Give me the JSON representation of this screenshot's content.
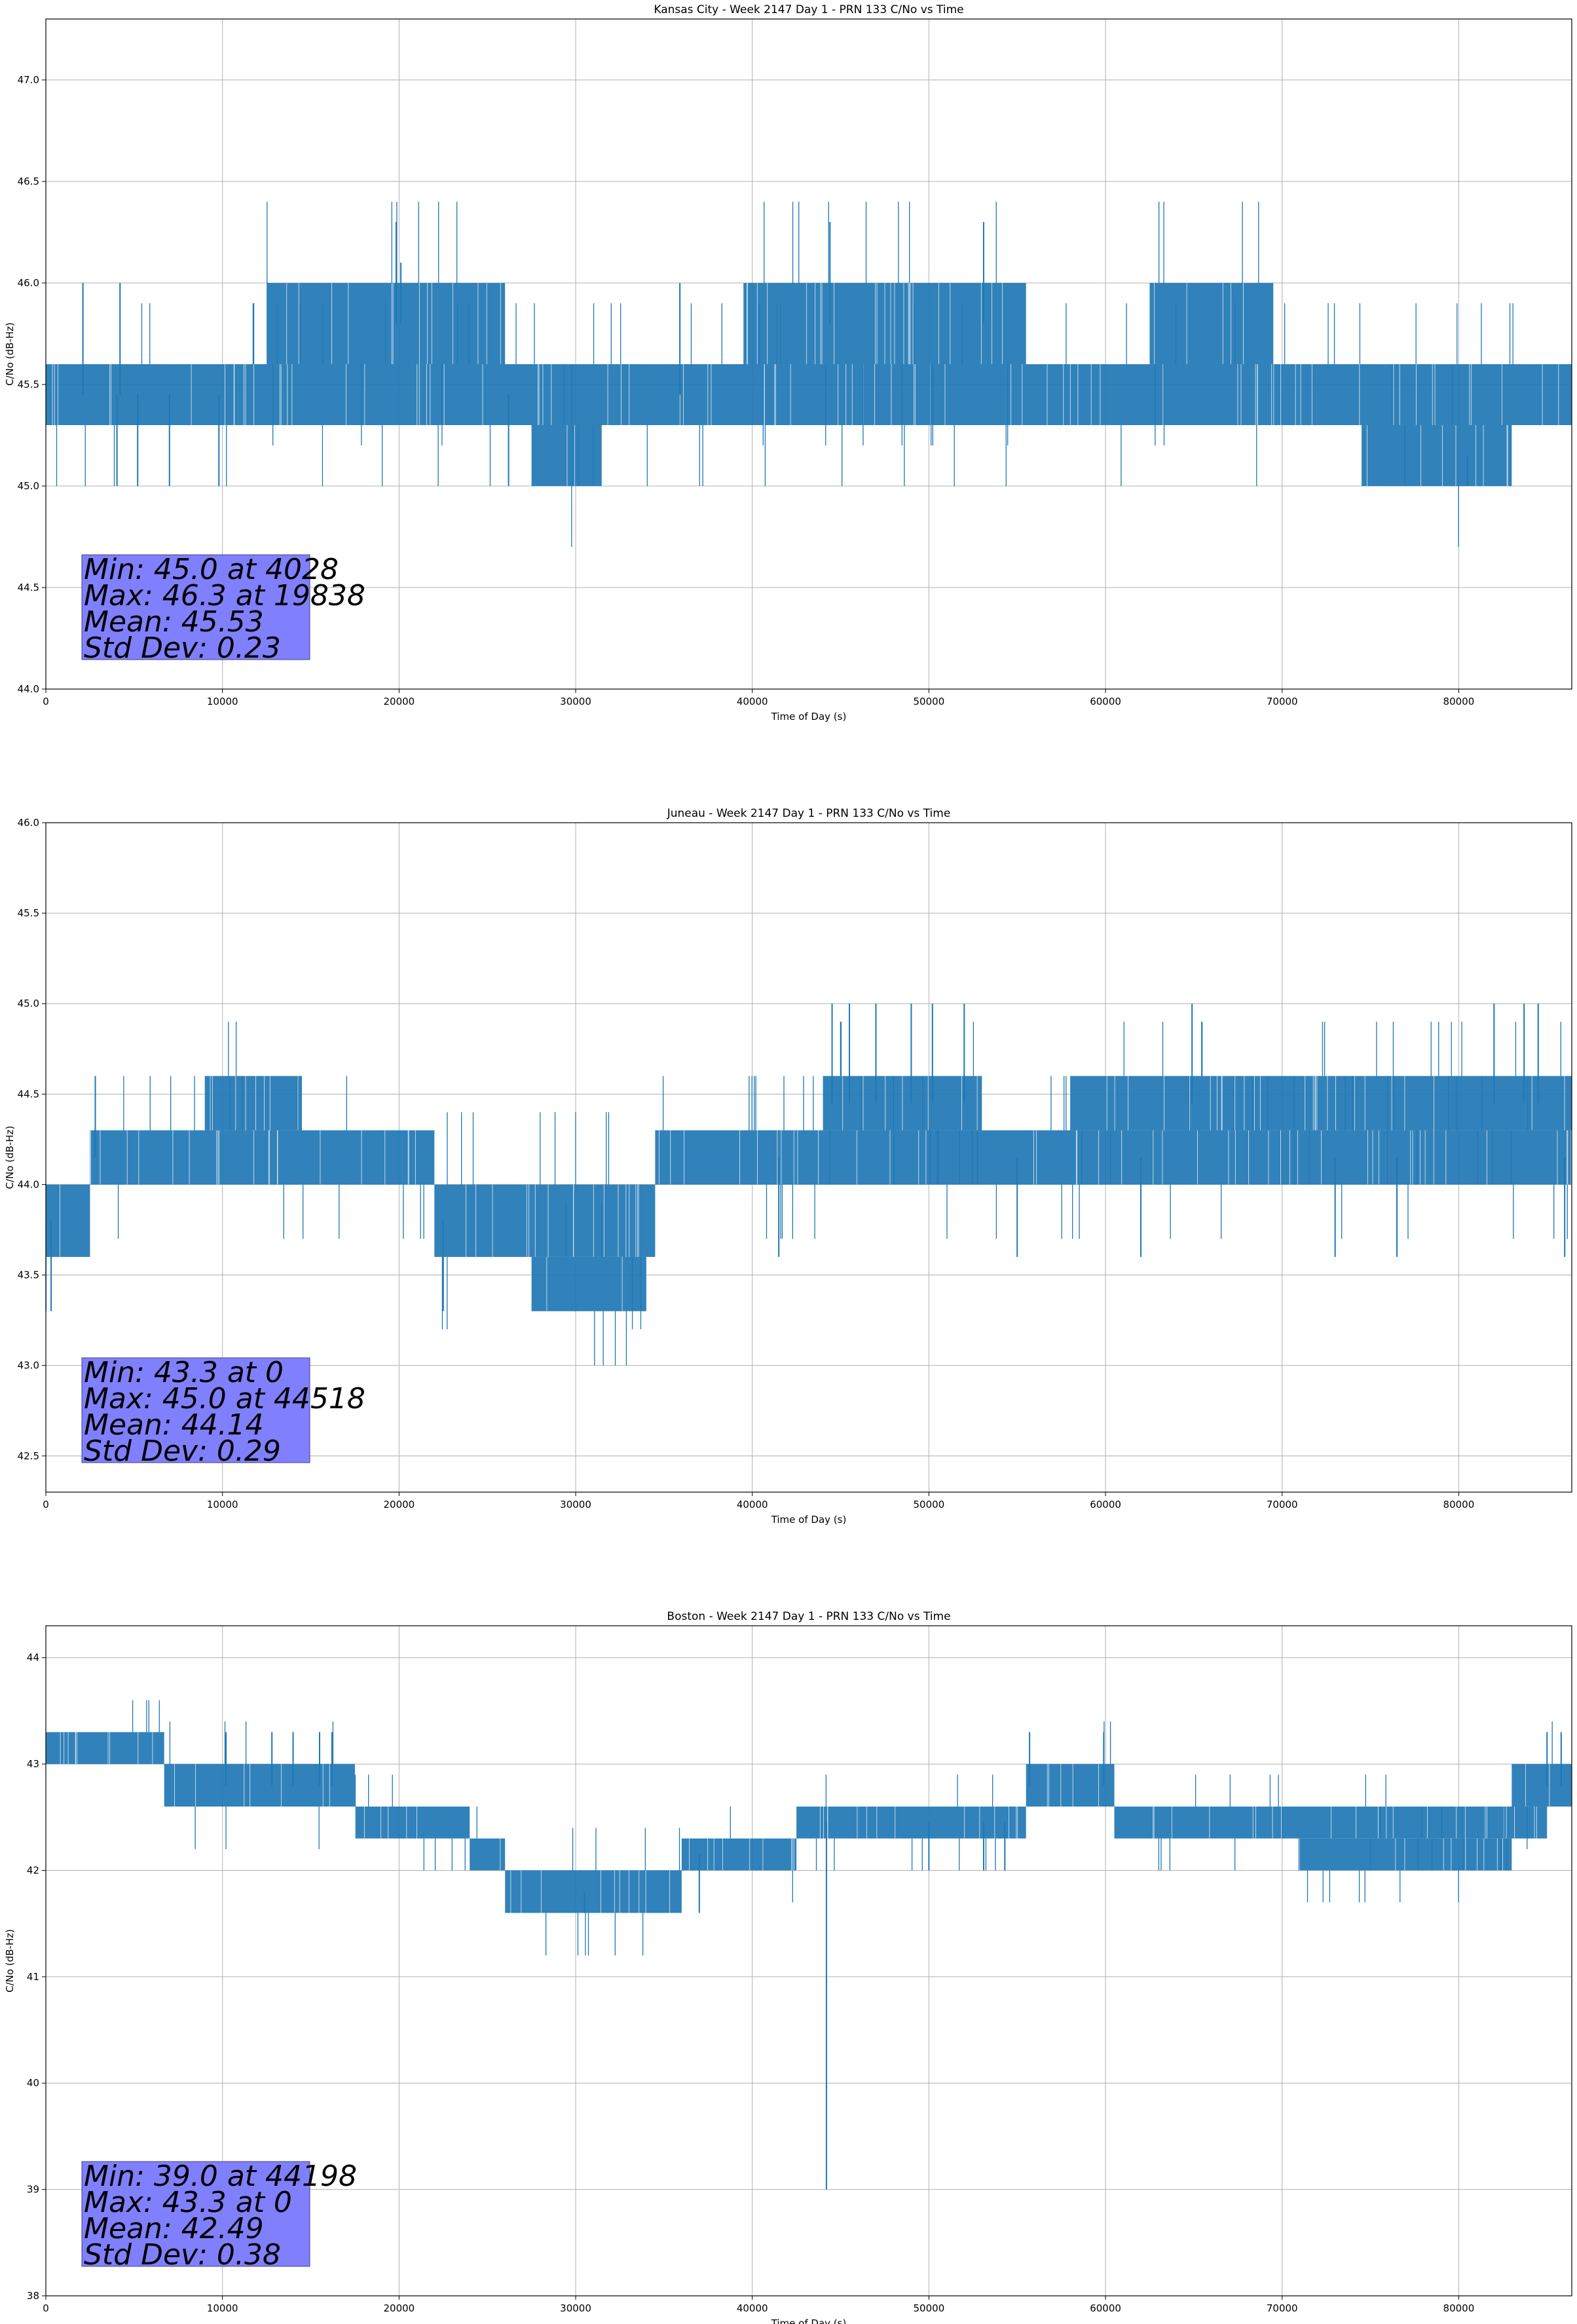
{
  "chart_data": [
    {
      "type": "line",
      "title": "Kansas City - Week 2147 Day 1 - PRN 133 C/No vs Time",
      "xlabel": "Time of Day (s)",
      "ylabel": "C/No (dB-Hz)",
      "xlim": [
        0,
        86400
      ],
      "ylim": [
        44.0,
        47.3
      ],
      "xticks": [
        0,
        10000,
        20000,
        30000,
        40000,
        50000,
        60000,
        70000,
        80000
      ],
      "yticks": [
        44.0,
        44.5,
        45.0,
        45.5,
        46.0,
        46.5,
        47.0
      ],
      "ytick_labels": [
        "44.0",
        "44.5",
        "45.0",
        "45.5",
        "46.0",
        "46.5",
        "47.0"
      ],
      "grid": true,
      "line_color": "#1f77b4",
      "box_color": "#8080ff",
      "stats": [
        "Min: 45.0 at 4028",
        "Max: 46.3 at 19838",
        "Mean: 45.53",
        "Std Dev: 0.23"
      ],
      "bands": [
        {
          "x": [
            0,
            86400
          ],
          "range": [
            45.3,
            45.6
          ]
        },
        {
          "x": [
            12500,
            26000
          ],
          "range": [
            45.6,
            46.0
          ]
        },
        {
          "x": [
            39500,
            55500
          ],
          "range": [
            45.6,
            46.0
          ]
        },
        {
          "x": [
            62500,
            69500
          ],
          "range": [
            45.6,
            46.0
          ]
        },
        {
          "x": [
            27500,
            31500
          ],
          "range": [
            45.0,
            45.3
          ]
        },
        {
          "x": [
            74500,
            83000
          ],
          "range": [
            45.0,
            45.3
          ]
        }
      ],
      "spikes": [
        {
          "x": 2100,
          "y": 46.0
        },
        {
          "x": 4200,
          "y": 46.0
        },
        {
          "x": 19838,
          "y": 46.3
        },
        {
          "x": 20100,
          "y": 46.1
        },
        {
          "x": 35900,
          "y": 46.0
        },
        {
          "x": 44400,
          "y": 46.3
        },
        {
          "x": 53100,
          "y": 46.3
        },
        {
          "x": 4028,
          "y": 45.0
        },
        {
          "x": 5200,
          "y": 45.0
        },
        {
          "x": 7000,
          "y": 45.0
        },
        {
          "x": 9800,
          "y": 45.0
        },
        {
          "x": 26200,
          "y": 45.0
        },
        {
          "x": 80500,
          "y": 45.0
        }
      ]
    },
    {
      "type": "line",
      "title": "Juneau - Week 2147 Day 1 - PRN 133 C/No vs Time",
      "xlabel": "Time of Day (s)",
      "ylabel": "C/No (dB-Hz)",
      "xlim": [
        0,
        86400
      ],
      "ylim": [
        42.3,
        46.0
      ],
      "xticks": [
        0,
        10000,
        20000,
        30000,
        40000,
        50000,
        60000,
        70000,
        80000
      ],
      "yticks": [
        42.5,
        43.0,
        43.5,
        44.0,
        44.5,
        45.0,
        45.5,
        46.0
      ],
      "ytick_labels": [
        "42.5",
        "43.0",
        "43.5",
        "44.0",
        "44.5",
        "45.0",
        "45.5",
        "46.0"
      ],
      "grid": true,
      "line_color": "#1f77b4",
      "box_color": "#8080ff",
      "stats": [
        "Min: 43.3 at 0",
        "Max: 45.0 at 44518",
        "Mean: 44.14",
        "Std Dev: 0.29"
      ],
      "bands": [
        {
          "x": [
            0,
            2500
          ],
          "range": [
            43.6,
            44.0
          ]
        },
        {
          "x": [
            2500,
            22000
          ],
          "range": [
            44.0,
            44.3
          ]
        },
        {
          "x": [
            9000,
            14500
          ],
          "range": [
            44.3,
            44.6
          ]
        },
        {
          "x": [
            22000,
            34500
          ],
          "range": [
            43.6,
            44.0
          ]
        },
        {
          "x": [
            34500,
            86400
          ],
          "range": [
            44.0,
            44.3
          ]
        },
        {
          "x": [
            44000,
            53000
          ],
          "range": [
            44.3,
            44.6
          ]
        },
        {
          "x": [
            58000,
            86400
          ],
          "range": [
            44.3,
            44.6
          ]
        },
        {
          "x": [
            27500,
            34000
          ],
          "range": [
            43.3,
            43.6
          ]
        }
      ],
      "spikes": [
        {
          "x": 0,
          "y": 43.3
        },
        {
          "x": 300,
          "y": 43.3
        },
        {
          "x": 2800,
          "y": 44.6
        },
        {
          "x": 44518,
          "y": 45.0
        },
        {
          "x": 45500,
          "y": 45.0
        },
        {
          "x": 47000,
          "y": 45.0
        },
        {
          "x": 49000,
          "y": 45.0
        },
        {
          "x": 50200,
          "y": 45.0
        },
        {
          "x": 52000,
          "y": 45.0
        },
        {
          "x": 64900,
          "y": 45.0
        },
        {
          "x": 82000,
          "y": 45.0
        },
        {
          "x": 83700,
          "y": 45.0
        },
        {
          "x": 84500,
          "y": 45.0
        },
        {
          "x": 22500,
          "y": 43.3
        },
        {
          "x": 41500,
          "y": 43.6
        },
        {
          "x": 55000,
          "y": 43.6
        },
        {
          "x": 62000,
          "y": 43.6
        },
        {
          "x": 73000,
          "y": 43.6
        },
        {
          "x": 76500,
          "y": 43.6
        },
        {
          "x": 86000,
          "y": 43.6
        }
      ]
    },
    {
      "type": "line",
      "title": "Boston - Week 2147 Day 1 - PRN 133 C/No vs Time",
      "xlabel": "Time of Day (s)",
      "ylabel": "C/No (dB-Hz)",
      "xlim": [
        0,
        86400
      ],
      "ylim": [
        38.0,
        44.3
      ],
      "xticks": [
        0,
        10000,
        20000,
        30000,
        40000,
        50000,
        60000,
        70000,
        80000
      ],
      "yticks": [
        38,
        39,
        40,
        41,
        42,
        43,
        44
      ],
      "ytick_labels": [
        "38",
        "39",
        "40",
        "41",
        "42",
        "43",
        "44"
      ],
      "grid": true,
      "line_color": "#1f77b4",
      "box_color": "#8080ff",
      "stats": [
        "Min: 39.0 at 44198",
        "Max: 43.3 at 0",
        "Mean: 42.49",
        "Std Dev: 0.38"
      ],
      "bands": [
        {
          "x": [
            0,
            6700
          ],
          "range": [
            43.0,
            43.3
          ]
        },
        {
          "x": [
            6700,
            13500
          ],
          "range": [
            42.6,
            43.0
          ]
        },
        {
          "x": [
            13500,
            17500
          ],
          "range": [
            42.6,
            43.0
          ]
        },
        {
          "x": [
            17500,
            24000
          ],
          "range": [
            42.3,
            42.6
          ]
        },
        {
          "x": [
            24000,
            26000
          ],
          "range": [
            42.0,
            42.3
          ]
        },
        {
          "x": [
            26000,
            36000
          ],
          "range": [
            41.6,
            42.0
          ]
        },
        {
          "x": [
            36000,
            42500
          ],
          "range": [
            42.0,
            42.3
          ]
        },
        {
          "x": [
            42500,
            55500
          ],
          "range": [
            42.3,
            42.6
          ]
        },
        {
          "x": [
            55500,
            60500
          ],
          "range": [
            42.6,
            43.0
          ]
        },
        {
          "x": [
            60500,
            85000
          ],
          "range": [
            42.3,
            42.6
          ]
        },
        {
          "x": [
            71000,
            83000
          ],
          "range": [
            42.0,
            42.3
          ]
        },
        {
          "x": [
            83000,
            86400
          ],
          "range": [
            42.6,
            43.0
          ]
        }
      ],
      "spikes": [
        {
          "x": 10200,
          "y": 43.3
        },
        {
          "x": 12800,
          "y": 43.3
        },
        {
          "x": 14000,
          "y": 43.3
        },
        {
          "x": 15500,
          "y": 43.3
        },
        {
          "x": 16200,
          "y": 43.3
        },
        {
          "x": 44198,
          "y": 39.0
        },
        {
          "x": 53100,
          "y": 42.0
        },
        {
          "x": 54300,
          "y": 42.0
        },
        {
          "x": 55700,
          "y": 43.3
        },
        {
          "x": 59900,
          "y": 43.3
        },
        {
          "x": 85000,
          "y": 43.3
        },
        {
          "x": 85800,
          "y": 43.3
        },
        {
          "x": 30500,
          "y": 41.6
        },
        {
          "x": 37000,
          "y": 41.6
        },
        {
          "x": 50000,
          "y": 42.0
        }
      ]
    }
  ]
}
